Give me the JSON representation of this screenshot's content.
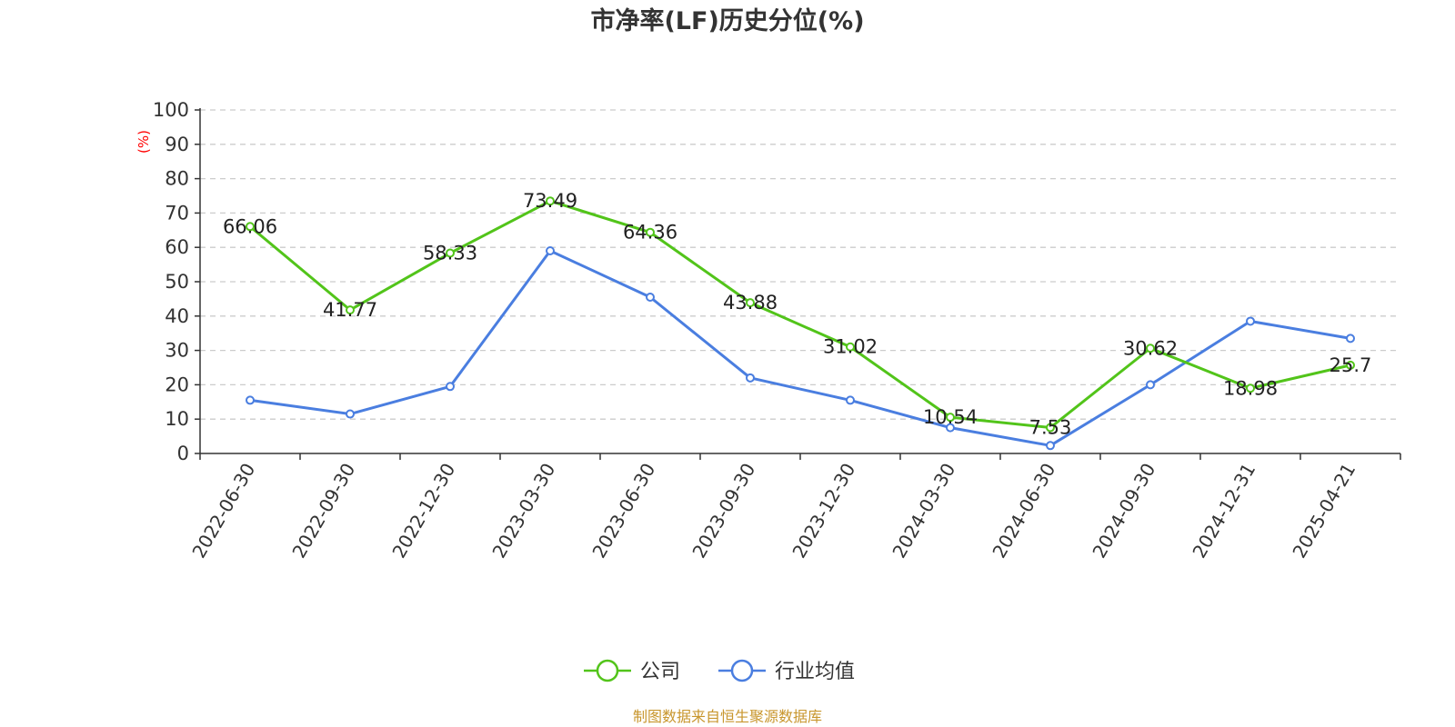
{
  "chart_data": {
    "type": "line",
    "title": "市净率(LF)历史分位(%)",
    "ylabel": "(%)",
    "ylim": [
      0,
      100
    ],
    "yticks": [
      0,
      10,
      20,
      30,
      40,
      50,
      60,
      70,
      80,
      90,
      100
    ],
    "grid": true,
    "legend_position": "bottom-center",
    "categories": [
      "2022-06-30",
      "2022-09-30",
      "2022-12-30",
      "2023-03-30",
      "2023-06-30",
      "2023-09-30",
      "2023-12-30",
      "2024-03-30",
      "2024-06-30",
      "2024-09-30",
      "2024-12-31",
      "2025-04-21"
    ],
    "series": [
      {
        "name": "公司",
        "color": "#52c41a",
        "show_labels": true,
        "values": [
          66.06,
          41.77,
          58.33,
          73.49,
          64.36,
          43.88,
          31.02,
          10.54,
          7.53,
          30.62,
          18.98,
          25.7
        ]
      },
      {
        "name": "行业均值",
        "color": "#4a7ee0",
        "show_labels": false,
        "values": [
          15.5,
          11.5,
          19.5,
          59.0,
          45.5,
          22.0,
          15.5,
          7.5,
          2.3,
          20.0,
          38.5,
          33.5
        ]
      }
    ]
  },
  "footer": {
    "source": "制图数据来自恒生聚源数据库"
  }
}
